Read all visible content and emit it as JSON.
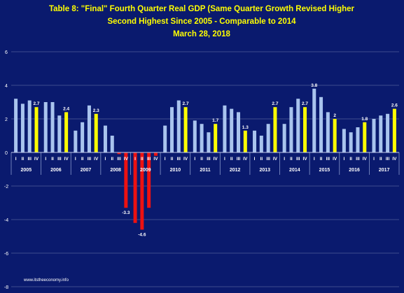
{
  "chart_data": {
    "type": "bar",
    "title_lines": [
      "Table 8: \"Final\"  Fourth Quarter Real GDP (Same Quarter Growth Revised Higher",
      "Second Highest Since 2005 - Comparable to 2014",
      "March  28, 2018"
    ],
    "xlabel": "",
    "ylabel": "",
    "ylim": [
      -8,
      6
    ],
    "yticks": [
      -8,
      -6,
      -4,
      -2,
      0,
      2,
      4,
      6
    ],
    "grid": "horizontal",
    "quarter_labels": [
      "I",
      "II",
      "III",
      "IV"
    ],
    "years": [
      {
        "year": "2005",
        "values": [
          3.2,
          2.9,
          3.1,
          2.7
        ]
      },
      {
        "year": "2006",
        "values": [
          3.0,
          3.0,
          2.2,
          2.4
        ]
      },
      {
        "year": "2007",
        "values": [
          1.3,
          1.8,
          2.8,
          2.3
        ]
      },
      {
        "year": "2008",
        "values": [
          1.6,
          1.0,
          -0.1,
          -3.3
        ]
      },
      {
        "year": "2009",
        "values": [
          -4.2,
          -4.6,
          -3.3,
          -0.2
        ]
      },
      {
        "year": "2010",
        "values": [
          1.6,
          2.7,
          3.1,
          2.7
        ]
      },
      {
        "year": "2011",
        "values": [
          1.9,
          1.7,
          1.2,
          1.7
        ]
      },
      {
        "year": "2012",
        "values": [
          2.8,
          2.6,
          2.4,
          1.3
        ]
      },
      {
        "year": "2013",
        "values": [
          1.3,
          1.0,
          1.7,
          2.7
        ]
      },
      {
        "year": "2014",
        "values": [
          1.7,
          2.7,
          3.2,
          2.7
        ]
      },
      {
        "year": "2015",
        "values": [
          3.8,
          3.3,
          2.4,
          2.0
        ]
      },
      {
        "year": "2016",
        "values": [
          1.4,
          1.2,
          1.5,
          1.8
        ]
      },
      {
        "year": "2017",
        "values": [
          2.0,
          2.2,
          2.3,
          2.6
        ]
      }
    ],
    "data_labels": [
      {
        "year": "2005",
        "quarter": 4,
        "text": "2.7"
      },
      {
        "year": "2006",
        "quarter": 4,
        "text": "2.4"
      },
      {
        "year": "2007",
        "quarter": 4,
        "text": "2.3"
      },
      {
        "year": "2008",
        "quarter": 4,
        "text": "-3.3"
      },
      {
        "year": "2009",
        "quarter": 2,
        "text": "-4.6"
      },
      {
        "year": "2010",
        "quarter": 4,
        "text": "2.7"
      },
      {
        "year": "2011",
        "quarter": 4,
        "text": "1.7"
      },
      {
        "year": "2012",
        "quarter": 4,
        "text": "1.3"
      },
      {
        "year": "2013",
        "quarter": 4,
        "text": "2.7"
      },
      {
        "year": "2014",
        "quarter": 4,
        "text": "2.7"
      },
      {
        "year": "2015",
        "quarter": 1,
        "text": "3.8"
      },
      {
        "year": "2015",
        "quarter": 4,
        "text": "2"
      },
      {
        "year": "2016",
        "quarter": 4,
        "text": "1.8"
      },
      {
        "year": "2017",
        "quarter": 4,
        "text": "2.6"
      }
    ],
    "footer": "www.itstheeconomy.info",
    "colors": {
      "background": "#0a1a6e",
      "title": "#ffff00",
      "bar_default": "#a9c4ee",
      "bar_q4": "#ffff00",
      "bar_negative": "#ee1111",
      "text": "#ffffff",
      "grid": "#3e4c8e"
    }
  }
}
